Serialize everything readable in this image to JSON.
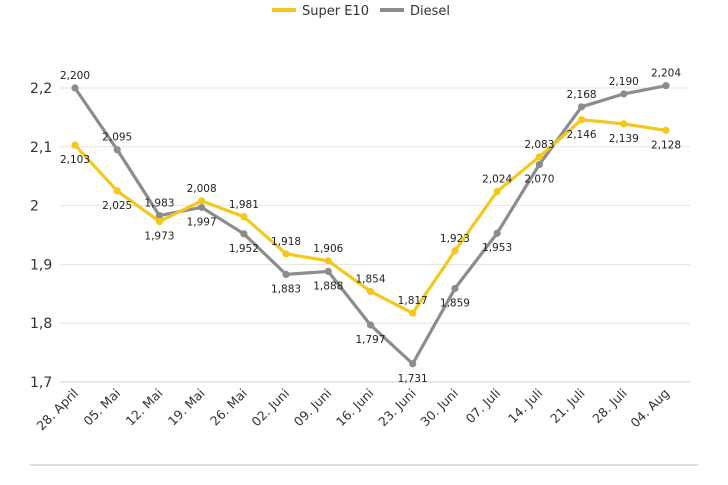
{
  "chart_data": {
    "type": "line",
    "categories": [
      "28. April",
      "05. Mai",
      "12. Mai",
      "19. Mai",
      "26. Mai",
      "02. Juni",
      "09. Juni",
      "16. Juni",
      "23. Juni",
      "30. Juni",
      "07. Juli",
      "14. Juli",
      "21. Juli",
      "28. Juli",
      "04. Aug"
    ],
    "series": [
      {
        "name": "Super E10",
        "color": "#f2c81f",
        "values": [
          2.103,
          2.025,
          1.973,
          2.008,
          1.981,
          1.918,
          1.906,
          1.854,
          1.817,
          1.923,
          2.024,
          2.083,
          2.146,
          2.139,
          2.128
        ],
        "labels": [
          "2,103",
          "2,025",
          "1,973",
          "2,008",
          "1,981",
          "1,918",
          "1,906",
          "1,854",
          "1,817",
          "1,923",
          "2,024",
          "2,083",
          "2,146",
          "2,139",
          "2,128"
        ]
      },
      {
        "name": "Diesel",
        "color": "#8c8c8c",
        "values": [
          2.2,
          2.095,
          1.983,
          1.997,
          1.952,
          1.883,
          1.888,
          1.797,
          1.731,
          1.859,
          1.953,
          2.07,
          2.168,
          2.19,
          2.204
        ],
        "labels": [
          "2,200",
          "2,095",
          "1,983",
          "1,997",
          "1,952",
          "1,883",
          "1,888",
          "1,797",
          "1,731",
          "1,859",
          "1,953",
          "2,070",
          "2,168",
          "2,190",
          "2,204"
        ]
      }
    ],
    "yticks": [
      1.7,
      1.8,
      1.9,
      2.0,
      2.1,
      2.2
    ],
    "ytick_labels": [
      "1,7",
      "1,8",
      "1,9",
      "2",
      "2,1",
      "2,2"
    ],
    "ylim": [
      1.7,
      2.2
    ],
    "grid": true,
    "legend": "top-center",
    "title": "",
    "xlabel": "",
    "ylabel": ""
  }
}
